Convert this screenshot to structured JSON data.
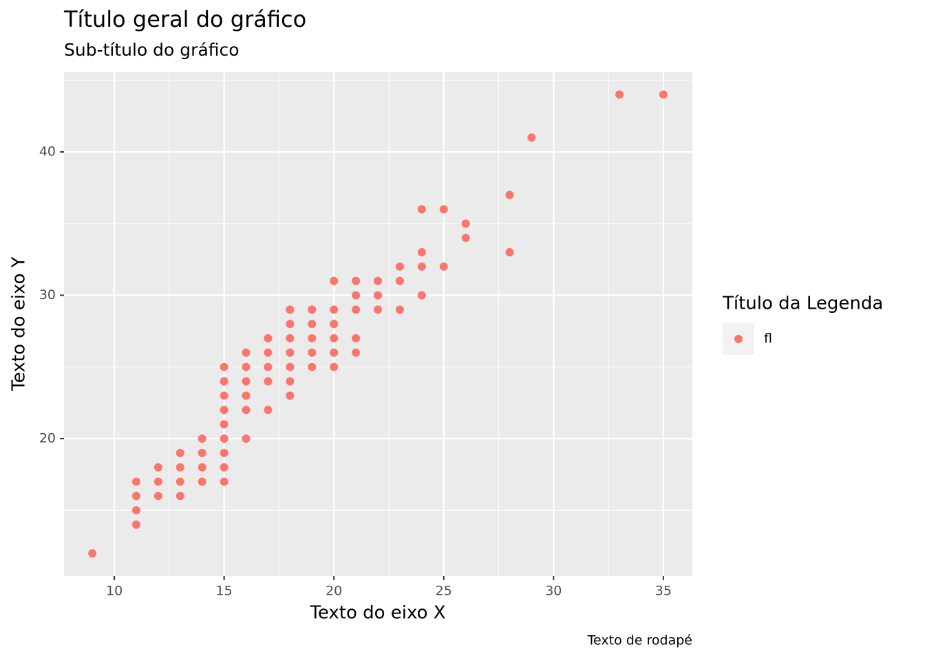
{
  "chart_data": {
    "type": "scatter",
    "title": "Título geral do gráfico",
    "subtitle": "Sub-título do gráfico",
    "x_label": "Texto do eixo X",
    "y_label": "Texto do eixo Y",
    "caption": "Texto de rodapé",
    "legend_title": "Título da Legenda",
    "legend_position": "right",
    "grid": true,
    "xlim": [
      7.71,
      36.32
    ],
    "ylim": [
      10.41,
      45.56
    ],
    "xticks": [
      10,
      15,
      20,
      25,
      30,
      35
    ],
    "yticks": [
      20,
      30,
      40
    ],
    "xminorticks": [
      12.5,
      17.5,
      22.5,
      27.5,
      32.5
    ],
    "yminorticks": [
      15,
      25,
      35,
      45
    ],
    "x": [
      9,
      11,
      11,
      11,
      11,
      12,
      12,
      12,
      13,
      13,
      13,
      13,
      14,
      14,
      14,
      14,
      15,
      15,
      15,
      15,
      15,
      15,
      15,
      15,
      15,
      16,
      16,
      16,
      16,
      16,
      16,
      17,
      17,
      17,
      17,
      17,
      18,
      18,
      18,
      18,
      18,
      18,
      18,
      19,
      19,
      19,
      19,
      19,
      20,
      20,
      20,
      20,
      20,
      20,
      21,
      21,
      21,
      21,
      21,
      22,
      22,
      22,
      23,
      23,
      23,
      24,
      24,
      24,
      24,
      25,
      25,
      26,
      26,
      28,
      28,
      29,
      33,
      35
    ],
    "series": [
      {
        "name": "fl",
        "color": "#F8766D",
        "values": [
          12,
          14,
          15,
          16,
          17,
          16,
          17,
          18,
          16,
          17,
          18,
          19,
          17,
          18,
          19,
          20,
          17,
          18,
          19,
          20,
          21,
          22,
          23,
          24,
          25,
          20,
          22,
          23,
          24,
          25,
          26,
          22,
          24,
          25,
          26,
          27,
          23,
          24,
          25,
          26,
          27,
          28,
          29,
          25,
          26,
          27,
          28,
          29,
          25,
          26,
          27,
          28,
          29,
          31,
          26,
          27,
          29,
          30,
          31,
          29,
          30,
          31,
          29,
          31,
          32,
          30,
          32,
          33,
          36,
          32,
          36,
          34,
          35,
          33,
          37,
          41,
          44,
          44
        ]
      }
    ]
  }
}
